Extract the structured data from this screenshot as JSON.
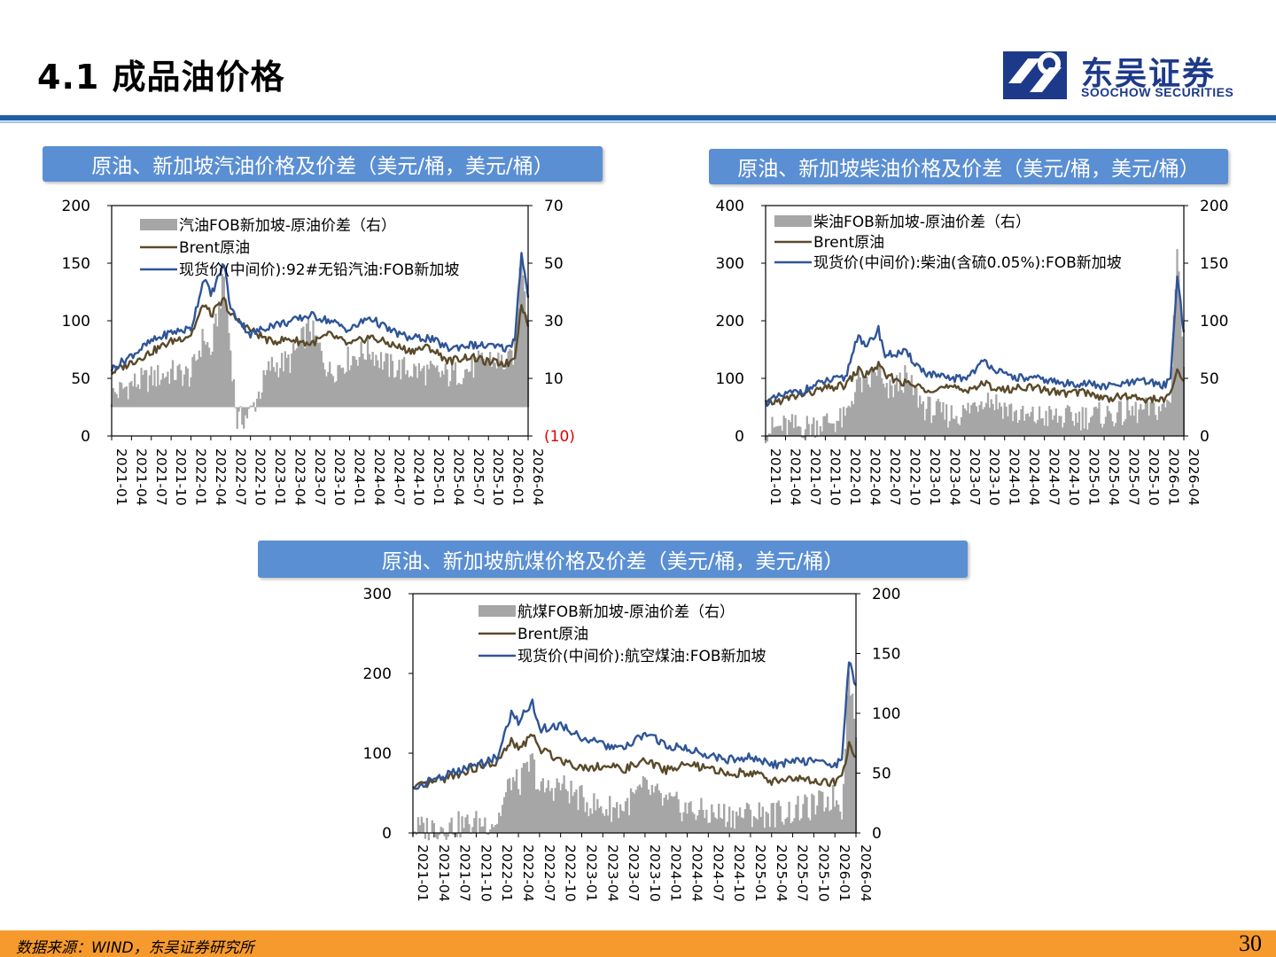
{
  "header": {
    "title": "4.1 成品油价格",
    "logo": {
      "cn": "东吴证券",
      "en": "SOOCHOW SECURITIES"
    }
  },
  "footer": {
    "source": "数据来源：WIND，东吴证券研究所",
    "page_number": "30"
  },
  "colors": {
    "spread_bar": "#a6a6a6",
    "brent_line": "#5a4a2a",
    "spot_line": "#2f5597",
    "panel_title_bg": "#5b8fd3",
    "negative_tick": "#e00000"
  },
  "x_tick_labels": [
    "2021-01",
    "2021-04",
    "2021-07",
    "2021-10",
    "2022-01",
    "2022-04",
    "2022-07",
    "2022-10",
    "2023-01",
    "2023-04",
    "2023-07",
    "2023-10",
    "2024-01",
    "2024-04",
    "2024-07",
    "2024-10",
    "2025-01",
    "2025-04",
    "2025-07",
    "2025-10",
    "2026-01",
    "2026-04"
  ],
  "chart_data": [
    {
      "type": "line",
      "panel_title": "原油、新加坡汽油价格及价差（美元/桶，美元/桶）",
      "legend": [
        "汽油FOB新加坡-原油价差（右）",
        "Brent原油",
        "现货价(中间价):92#无铅汽油:FOB新加坡"
      ],
      "left_axis": {
        "ylim": [
          0,
          200
        ],
        "ticks": [
          "0",
          "50",
          "100",
          "150",
          "200"
        ]
      },
      "right_axis": {
        "ylim": [
          -10,
          70
        ],
        "ticks": [
          "(10)",
          "10",
          "30",
          "50",
          "70"
        ]
      },
      "x_range": [
        "2021-01",
        "2026-04"
      ],
      "series": [
        {
          "name": "Brent原油",
          "axis": "left",
          "kind": "line",
          "x": [
            "2021-01",
            "2021-04",
            "2021-07",
            "2021-10",
            "2022-01",
            "2022-03",
            "2022-04",
            "2022-06",
            "2022-07",
            "2022-10",
            "2023-01",
            "2023-04",
            "2023-07",
            "2023-10",
            "2024-01",
            "2024-04",
            "2024-07",
            "2024-10",
            "2025-01",
            "2025-04",
            "2025-07",
            "2025-10",
            "2026-01",
            "2026-02",
            "2026-03",
            "2026-04"
          ],
          "y": [
            55,
            64,
            73,
            82,
            88,
            115,
            105,
            118,
            105,
            92,
            82,
            84,
            80,
            88,
            79,
            86,
            80,
            74,
            77,
            65,
            69,
            64,
            63,
            70,
            115,
            95
          ]
        },
        {
          "name": "现货价(中间价):92#无铅汽油:FOB新加坡",
          "axis": "left",
          "kind": "line",
          "x": [
            "2021-01",
            "2021-04",
            "2021-07",
            "2021-10",
            "2022-01",
            "2022-03",
            "2022-04",
            "2022-06",
            "2022-07",
            "2022-10",
            "2023-01",
            "2023-04",
            "2023-07",
            "2023-10",
            "2024-01",
            "2024-04",
            "2024-07",
            "2024-10",
            "2025-01",
            "2025-04",
            "2025-07",
            "2025-10",
            "2026-01",
            "2026-02",
            "2026-03",
            "2026-04"
          ],
          "y": [
            58,
            70,
            82,
            90,
            93,
            138,
            122,
            150,
            110,
            88,
            96,
            99,
            105,
            100,
            92,
            103,
            92,
            85,
            85,
            76,
            79,
            78,
            76,
            85,
            160,
            120
          ]
        },
        {
          "name": "汽油FOB新加坡-原油价差（右）",
          "axis": "right",
          "kind": "area",
          "x": [
            "2021-01",
            "2021-04",
            "2021-07",
            "2021-10",
            "2022-01",
            "2022-03",
            "2022-04",
            "2022-06",
            "2022-07",
            "2022-08",
            "2022-10",
            "2023-01",
            "2023-04",
            "2023-07",
            "2023-10",
            "2024-01",
            "2024-04",
            "2024-07",
            "2024-10",
            "2025-01",
            "2025-04",
            "2025-07",
            "2025-10",
            "2026-01",
            "2026-02",
            "2026-03",
            "2026-04"
          ],
          "y": [
            4,
            8,
            10,
            12,
            11,
            25,
            18,
            45,
            20,
            -5,
            -2,
            14,
            16,
            28,
            12,
            17,
            20,
            14,
            13,
            12,
            11,
            13,
            17,
            15,
            20,
            55,
            30
          ]
        }
      ]
    },
    {
      "type": "line",
      "panel_title": "原油、新加坡柴油价格及价差（美元/桶，美元/桶）",
      "legend": [
        "柴油FOB新加坡-原油价差（右）",
        "Brent原油",
        "现货价(中间价):柴油(含硫0.05%):FOB新加坡"
      ],
      "left_axis": {
        "ylim": [
          0,
          400
        ],
        "ticks": [
          "0",
          "100",
          "200",
          "300",
          "400"
        ]
      },
      "right_axis": {
        "ylim": [
          0,
          200
        ],
        "ticks": [
          "0",
          "50",
          "100",
          "150",
          "200"
        ]
      },
      "x_range": [
        "2021-01",
        "2026-04"
      ],
      "series": [
        {
          "name": "Brent原油",
          "axis": "left",
          "kind": "line",
          "x": [
            "2021-01",
            "2021-04",
            "2021-07",
            "2021-10",
            "2022-01",
            "2022-03",
            "2022-04",
            "2022-06",
            "2022-07",
            "2022-10",
            "2023-01",
            "2023-04",
            "2023-07",
            "2023-10",
            "2024-01",
            "2024-04",
            "2024-07",
            "2024-10",
            "2025-01",
            "2025-04",
            "2025-07",
            "2025-10",
            "2026-01",
            "2026-02",
            "2026-03",
            "2026-04"
          ],
          "y": [
            55,
            64,
            73,
            82,
            88,
            115,
            105,
            123,
            105,
            92,
            82,
            84,
            80,
            90,
            79,
            86,
            80,
            74,
            77,
            65,
            69,
            64,
            63,
            70,
            115,
            95
          ]
        },
        {
          "name": "现货价(中间价):柴油(含硫0.05%):FOB新加坡",
          "axis": "left",
          "kind": "line",
          "x": [
            "2021-01",
            "2021-04",
            "2021-07",
            "2021-10",
            "2022-01",
            "2022-03",
            "2022-04",
            "2022-06",
            "2022-07",
            "2022-10",
            "2023-01",
            "2023-04",
            "2023-07",
            "2023-10",
            "2024-01",
            "2024-04",
            "2024-07",
            "2024-10",
            "2025-01",
            "2025-04",
            "2025-07",
            "2025-10",
            "2026-01",
            "2026-02",
            "2026-03",
            "2026-04"
          ],
          "y": [
            58,
            72,
            80,
            95,
            100,
            180,
            150,
            185,
            140,
            145,
            110,
            100,
            100,
            130,
            105,
            100,
            98,
            90,
            92,
            85,
            90,
            95,
            88,
            100,
            280,
            180
          ]
        },
        {
          "name": "柴油FOB新加坡-原油价差（右）",
          "axis": "right",
          "kind": "area",
          "x": [
            "2021-01",
            "2021-04",
            "2021-07",
            "2021-10",
            "2022-01",
            "2022-03",
            "2022-04",
            "2022-06",
            "2022-07",
            "2022-10",
            "2023-01",
            "2023-04",
            "2023-07",
            "2023-10",
            "2024-01",
            "2024-04",
            "2024-07",
            "2024-10",
            "2025-01",
            "2025-04",
            "2025-07",
            "2025-10",
            "2026-01",
            "2026-02",
            "2026-03",
            "2026-04"
          ],
          "y": [
            5,
            8,
            8,
            12,
            14,
            50,
            40,
            60,
            35,
            50,
            25,
            18,
            20,
            35,
            25,
            15,
            17,
            15,
            17,
            18,
            19,
            22,
            25,
            30,
            170,
            60
          ]
        }
      ]
    },
    {
      "type": "line",
      "panel_title": "原油、新加坡航煤价格及价差（美元/桶，美元/桶）",
      "legend": [
        "航煤FOB新加坡-原油价差（右）",
        "Brent原油",
        "现货价(中间价):航空煤油:FOB新加坡"
      ],
      "left_axis": {
        "ylim": [
          0,
          300
        ],
        "ticks": [
          "0",
          "100",
          "200",
          "300"
        ]
      },
      "right_axis": {
        "ylim": [
          0,
          200
        ],
        "ticks": [
          "0",
          "50",
          "100",
          "150",
          "200"
        ]
      },
      "x_range": [
        "2021-01",
        "2026-04"
      ],
      "series": [
        {
          "name": "Brent原油",
          "axis": "left",
          "kind": "line",
          "x": [
            "2021-01",
            "2021-04",
            "2021-07",
            "2021-10",
            "2022-01",
            "2022-03",
            "2022-04",
            "2022-06",
            "2022-07",
            "2022-10",
            "2023-01",
            "2023-04",
            "2023-07",
            "2023-10",
            "2024-01",
            "2024-04",
            "2024-07",
            "2024-10",
            "2025-01",
            "2025-04",
            "2025-07",
            "2025-10",
            "2026-01",
            "2026-02",
            "2026-03",
            "2026-04"
          ],
          "y": [
            55,
            64,
            73,
            82,
            88,
            115,
            105,
            123,
            105,
            92,
            82,
            84,
            80,
            90,
            79,
            86,
            80,
            74,
            77,
            65,
            69,
            64,
            63,
            70,
            110,
            95
          ]
        },
        {
          "name": "现货价(中间价):航空煤油:FOB新加坡",
          "axis": "left",
          "kind": "line",
          "x": [
            "2021-01",
            "2021-04",
            "2021-07",
            "2021-10",
            "2022-01",
            "2022-03",
            "2022-04",
            "2022-06",
            "2022-07",
            "2022-10",
            "2023-01",
            "2023-04",
            "2023-07",
            "2023-10",
            "2024-01",
            "2024-04",
            "2024-07",
            "2024-10",
            "2025-01",
            "2025-04",
            "2025-07",
            "2025-10",
            "2026-01",
            "2026-02",
            "2026-03",
            "2026-04"
          ],
          "y": [
            55,
            68,
            76,
            85,
            95,
            150,
            140,
            165,
            130,
            135,
            120,
            110,
            105,
            125,
            110,
            105,
            98,
            92,
            95,
            85,
            90,
            90,
            85,
            95,
            215,
            185
          ]
        },
        {
          "name": "航煤FOB新加坡-原油价差（右）",
          "axis": "right",
          "kind": "area",
          "x": [
            "2021-01",
            "2021-04",
            "2021-07",
            "2021-10",
            "2022-01",
            "2022-03",
            "2022-04",
            "2022-06",
            "2022-07",
            "2022-10",
            "2023-01",
            "2023-04",
            "2023-07",
            "2023-10",
            "2024-01",
            "2024-04",
            "2024-07",
            "2024-10",
            "2025-01",
            "2025-04",
            "2025-07",
            "2025-10",
            "2026-01",
            "2026-02",
            "2026-03",
            "2026-04"
          ],
          "y": [
            3,
            5,
            6,
            8,
            10,
            45,
            40,
            60,
            35,
            40,
            28,
            20,
            22,
            38,
            25,
            20,
            16,
            15,
            16,
            16,
            18,
            22,
            30,
            20,
            140,
            80
          ]
        }
      ]
    }
  ]
}
